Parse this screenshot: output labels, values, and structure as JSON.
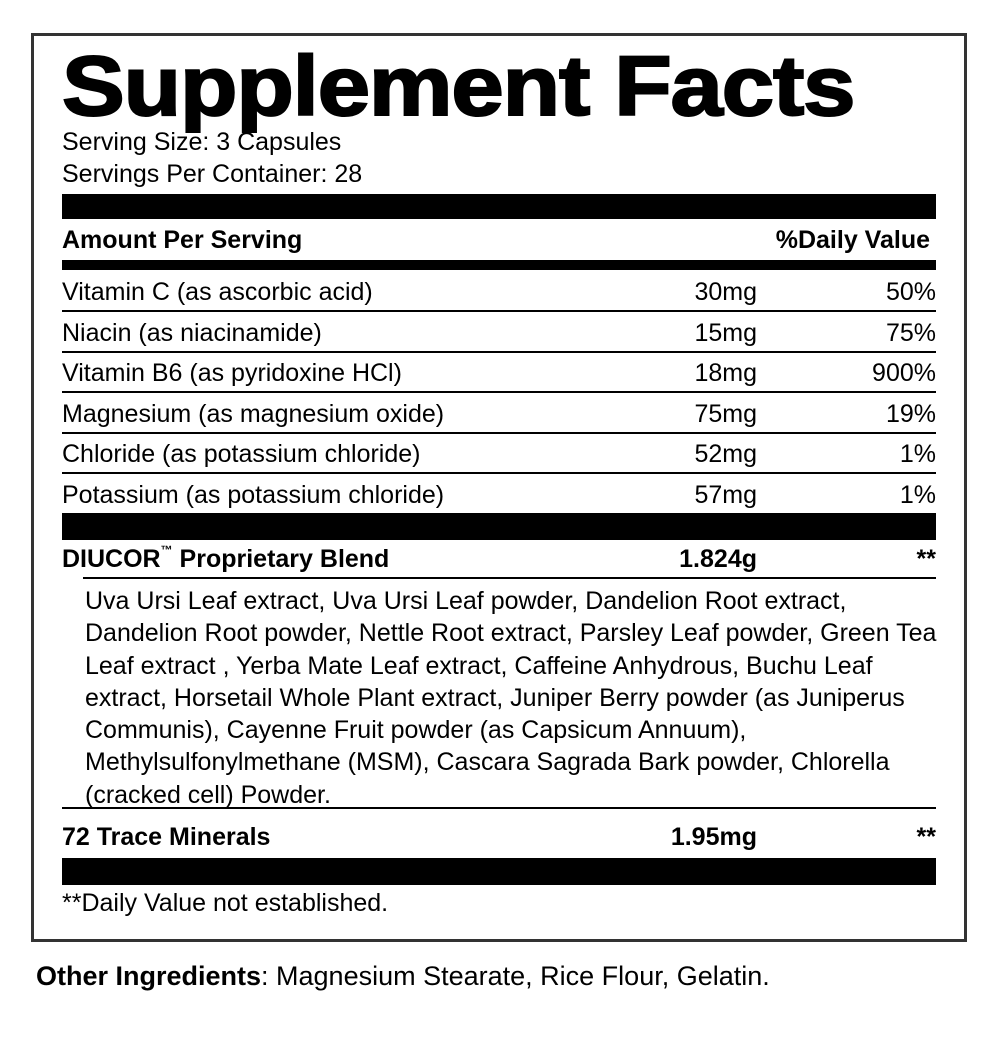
{
  "title": "Supplement Facts",
  "serving_size": "Serving Size: 3 Capsules",
  "servings_per_container": "Servings Per Container: 28",
  "header": {
    "amount": "Amount Per Serving",
    "daily_value": "%Daily Value"
  },
  "nutrients": [
    {
      "name": "Vitamin C (as ascorbic acid)",
      "amount": "30mg",
      "dv": "50%"
    },
    {
      "name": "Niacin (as niacinamide)",
      "amount": "15mg",
      "dv": "75%"
    },
    {
      "name": "Vitamin B6 (as pyridoxine HCl)",
      "amount": "18mg",
      "dv": "900%"
    },
    {
      "name": "Magnesium (as magnesium oxide)",
      "amount": "75mg",
      "dv": "19%"
    },
    {
      "name": "Chloride (as potassium chloride)",
      "amount": "52mg",
      "dv": "1%"
    },
    {
      "name": "Potassium (as potassium chloride)",
      "amount": "57mg",
      "dv": "1%"
    }
  ],
  "blend": {
    "name": "DIUCOR",
    "tm": "™",
    "name_suffix": " Proprietary Blend",
    "amount": "1.824g",
    "dv": "**",
    "ingredients": "Uva Ursi Leaf extract, Uva Ursi Leaf powder, Dandelion Root extract, Dandelion Root powder, Nettle Root extract, Parsley Leaf powder, Green Tea Leaf extract , Yerba Mate Leaf extract, Caffeine Anhydrous, Buchu Leaf extract, Horsetail Whole Plant extract, Juniper Berry powder (as Juniperus Communis), Cayenne Fruit powder (as Capsicum Annuum), Methylsulfonylmethane (MSM), Cascara Sagrada Bark powder, Chlorella (cracked cell) Powder."
  },
  "trace": {
    "name": "72 Trace Minerals",
    "amount": "1.95mg",
    "dv": "**"
  },
  "footnote": "**Daily Value not established.",
  "other": {
    "label": "Other Ingredients",
    "text": ": Magnesium Stearate, Rice Flour, Gelatin."
  }
}
